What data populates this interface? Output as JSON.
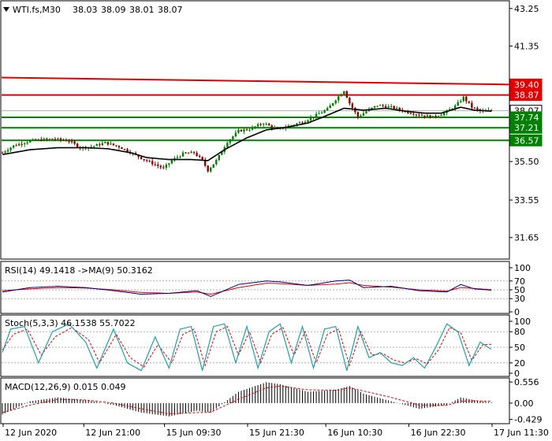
{
  "main": {
    "symbol": "WTI.fs,M30",
    "ohlc": [
      "38.03",
      "38.09",
      "38.01",
      "38.07"
    ],
    "y_ticks": [
      "43.25",
      "41.35",
      "39.40",
      "35.50",
      "33.55",
      "31.65"
    ],
    "price_labels": [
      {
        "text": "39.40",
        "bg": "#e00000",
        "fg": "#ffffff"
      },
      {
        "text": "38.87",
        "bg": "#e00000",
        "fg": "#ffffff"
      },
      {
        "text": "38.07",
        "bg": "#ffffff",
        "fg": "#000000"
      },
      {
        "text": "37.74",
        "bg": "#008000",
        "fg": "#ffffff"
      },
      {
        "text": "37.21",
        "bg": "#008000",
        "fg": "#ffffff"
      },
      {
        "text": "36.57",
        "bg": "#008000",
        "fg": "#ffffff"
      }
    ]
  },
  "rsi": {
    "label": "RSI(14) 49.1418  ->MA(9) 50.3162",
    "y_ticks": [
      "100",
      "70",
      "50",
      "30",
      "0"
    ]
  },
  "stoch": {
    "label": "Stoch(5,3,3) 46.1538 55.7022",
    "y_ticks": [
      "100",
      "80",
      "50",
      "20",
      "0"
    ]
  },
  "macd": {
    "label": "MACD(12,26,9) 0.015 0.049",
    "y_ticks": [
      "0.556",
      "0.00",
      "-0.429"
    ]
  },
  "x_ticks": [
    "12 Jun 2020",
    "12 Jun 21:00",
    "15 Jun 09:30",
    "15 Jun 21:30",
    "16 Jun 10:30",
    "16 Jun 22:30",
    "17 Jun 11:30"
  ],
  "colors": {
    "resistance": "#e00000",
    "support": "#008000",
    "candle_up": "#008000",
    "candle_down": "#8b0000",
    "ma": "#000000",
    "rsi": "#000080",
    "rsi_ma": "#e00000",
    "stoch_main": "#20a0a8",
    "stoch_signal": "#e00000",
    "macd_hist": "#000000",
    "macd_signal": "#e00000"
  },
  "chart_data": [
    {
      "type": "candlestick",
      "title": "WTI.fs,M30",
      "x": [
        "12 Jun 2020",
        "12 Jun 21:00",
        "15 Jun 09:30",
        "15 Jun 21:30",
        "16 Jun 10:30",
        "16 Jun 22:30",
        "17 Jun 11:30"
      ],
      "ylim": [
        30.6,
        43.6
      ],
      "price_path": [
        [
          0,
          35.95
        ],
        [
          4,
          36.3
        ],
        [
          10,
          36.55
        ],
        [
          18,
          36.65
        ],
        [
          24,
          36.55
        ],
        [
          28,
          36.2
        ],
        [
          32,
          36.25
        ],
        [
          37,
          36.45
        ],
        [
          42,
          36.25
        ],
        [
          47,
          35.9
        ],
        [
          51,
          35.6
        ],
        [
          55,
          35.35
        ],
        [
          58,
          35.15
        ],
        [
          61,
          35.55
        ],
        [
          65,
          35.9
        ],
        [
          69,
          35.95
        ],
        [
          72,
          35.55
        ],
        [
          74,
          35.05
        ],
        [
          77,
          35.55
        ],
        [
          81,
          36.5
        ],
        [
          85,
          37.05
        ],
        [
          89,
          37.15
        ],
        [
          94,
          37.45
        ],
        [
          99,
          37.1
        ],
        [
          103,
          37.3
        ],
        [
          108,
          37.5
        ],
        [
          113,
          37.85
        ],
        [
          117,
          38.15
        ],
        [
          120,
          38.65
        ],
        [
          123,
          39.1
        ],
        [
          125,
          38.45
        ],
        [
          128,
          37.75
        ],
        [
          131,
          38.05
        ],
        [
          135,
          38.35
        ],
        [
          140,
          38.25
        ],
        [
          146,
          38.0
        ],
        [
          151,
          37.85
        ],
        [
          155,
          37.75
        ],
        [
          159,
          37.95
        ],
        [
          163,
          38.3
        ],
        [
          166,
          38.75
        ],
        [
          169,
          38.25
        ],
        [
          172,
          38.05
        ],
        [
          176,
          38.07
        ]
      ],
      "ma_path": [
        [
          0,
          35.85
        ],
        [
          10,
          36.1
        ],
        [
          20,
          36.2
        ],
        [
          30,
          36.2
        ],
        [
          38,
          36.15
        ],
        [
          46,
          35.95
        ],
        [
          52,
          35.7
        ],
        [
          60,
          35.6
        ],
        [
          68,
          35.6
        ],
        [
          74,
          35.55
        ],
        [
          80,
          36.1
        ],
        [
          88,
          36.7
        ],
        [
          95,
          37.1
        ],
        [
          103,
          37.25
        ],
        [
          110,
          37.45
        ],
        [
          118,
          37.9
        ],
        [
          123,
          38.2
        ],
        [
          130,
          38.1
        ],
        [
          138,
          38.2
        ],
        [
          145,
          38.05
        ],
        [
          152,
          37.95
        ],
        [
          158,
          37.95
        ],
        [
          165,
          38.25
        ],
        [
          170,
          38.1
        ],
        [
          176,
          38.05
        ]
      ],
      "ohlc_last": [
        38.03,
        38.09,
        38.01,
        38.07
      ],
      "resistance_lines": [
        {
          "from": 39.75,
          "to": 39.4
        },
        {
          "from": 38.87,
          "to": 38.87
        }
      ],
      "support_lines": [
        37.74,
        37.21,
        36.57
      ]
    },
    {
      "type": "line",
      "title": "RSI(14) 49.1418  ->MA(9) 50.3162",
      "ylim": [
        0,
        100
      ],
      "levels": [
        70,
        50,
        30
      ],
      "series": [
        {
          "name": "RSI(14)",
          "values": [
            [
              0,
              45
            ],
            [
              10,
              55
            ],
            [
              20,
              58
            ],
            [
              30,
              55
            ],
            [
              40,
              48
            ],
            [
              50,
              40
            ],
            [
              60,
              42
            ],
            [
              70,
              48
            ],
            [
              75,
              35
            ],
            [
              85,
              62
            ],
            [
              95,
              70
            ],
            [
              100,
              68
            ],
            [
              110,
              60
            ],
            [
              120,
              70
            ],
            [
              125,
              72
            ],
            [
              130,
              55
            ],
            [
              140,
              58
            ],
            [
              150,
              48
            ],
            [
              160,
              45
            ],
            [
              165,
              62
            ],
            [
              170,
              52
            ],
            [
              176,
              49.14
            ]
          ]
        },
        {
          "name": "MA(9)",
          "values": [
            [
              0,
              48
            ],
            [
              10,
              52
            ],
            [
              20,
              55
            ],
            [
              30,
              54
            ],
            [
              40,
              50
            ],
            [
              50,
              44
            ],
            [
              60,
              42
            ],
            [
              70,
              45
            ],
            [
              75,
              40
            ],
            [
              85,
              55
            ],
            [
              95,
              65
            ],
            [
              100,
              64
            ],
            [
              110,
              60
            ],
            [
              120,
              63
            ],
            [
              125,
              66
            ],
            [
              130,
              60
            ],
            [
              140,
              56
            ],
            [
              150,
              50
            ],
            [
              160,
              47
            ],
            [
              165,
              55
            ],
            [
              170,
              53
            ],
            [
              176,
              50.32
            ]
          ]
        }
      ]
    },
    {
      "type": "line",
      "title": "Stoch(5,3,3) 46.1538 55.7022",
      "ylim": [
        0,
        100
      ],
      "levels": [
        80,
        50,
        20
      ],
      "series": [
        {
          "name": "Stoch main",
          "values": [
            [
              0,
              40
            ],
            [
              3,
              85
            ],
            [
              8,
              90
            ],
            [
              13,
              20
            ],
            [
              18,
              80
            ],
            [
              24,
              95
            ],
            [
              30,
              60
            ],
            [
              34,
              10
            ],
            [
              40,
              85
            ],
            [
              45,
              20
            ],
            [
              50,
              5
            ],
            [
              55,
              70
            ],
            [
              60,
              10
            ],
            [
              64,
              85
            ],
            [
              68,
              90
            ],
            [
              72,
              5
            ],
            [
              76,
              90
            ],
            [
              80,
              95
            ],
            [
              84,
              20
            ],
            [
              88,
              90
            ],
            [
              92,
              10
            ],
            [
              96,
              80
            ],
            [
              100,
              95
            ],
            [
              104,
              20
            ],
            [
              108,
              90
            ],
            [
              112,
              10
            ],
            [
              116,
              85
            ],
            [
              120,
              90
            ],
            [
              124,
              5
            ],
            [
              128,
              90
            ],
            [
              132,
              30
            ],
            [
              136,
              40
            ],
            [
              140,
              20
            ],
            [
              144,
              15
            ],
            [
              148,
              30
            ],
            [
              152,
              10
            ],
            [
              156,
              50
            ],
            [
              160,
              95
            ],
            [
              164,
              80
            ],
            [
              168,
              15
            ],
            [
              172,
              60
            ],
            [
              176,
              46.15
            ]
          ]
        },
        {
          "name": "Signal",
          "values": [
            [
              0,
              45
            ],
            [
              4,
              75
            ],
            [
              9,
              85
            ],
            [
              14,
              35
            ],
            [
              19,
              70
            ],
            [
              25,
              88
            ],
            [
              31,
              65
            ],
            [
              35,
              20
            ],
            [
              41,
              75
            ],
            [
              46,
              30
            ],
            [
              51,
              12
            ],
            [
              56,
              55
            ],
            [
              61,
              20
            ],
            [
              65,
              75
            ],
            [
              69,
              85
            ],
            [
              73,
              15
            ],
            [
              77,
              80
            ],
            [
              81,
              90
            ],
            [
              85,
              35
            ],
            [
              89,
              80
            ],
            [
              93,
              20
            ],
            [
              97,
              75
            ],
            [
              101,
              88
            ],
            [
              105,
              35
            ],
            [
              109,
              80
            ],
            [
              113,
              20
            ],
            [
              117,
              75
            ],
            [
              121,
              85
            ],
            [
              125,
              15
            ],
            [
              129,
              80
            ],
            [
              133,
              35
            ],
            [
              137,
              38
            ],
            [
              141,
              25
            ],
            [
              145,
              20
            ],
            [
              149,
              28
            ],
            [
              153,
              18
            ],
            [
              157,
              45
            ],
            [
              161,
              88
            ],
            [
              165,
              78
            ],
            [
              169,
              25
            ],
            [
              173,
              55
            ],
            [
              176,
              55.7
            ]
          ]
        }
      ]
    },
    {
      "type": "bar",
      "title": "MACD(12,26,9) 0.015 0.049",
      "ylim": [
        -0.5,
        0.62
      ],
      "series": [
        {
          "name": "MACD",
          "values": [
            [
              0,
              -0.3
            ],
            [
              10,
              0.05
            ],
            [
              20,
              0.15
            ],
            [
              30,
              0.08
            ],
            [
              40,
              -0.05
            ],
            [
              50,
              -0.25
            ],
            [
              60,
              -0.35
            ],
            [
              70,
              -0.2
            ],
            [
              75,
              -0.25
            ],
            [
              85,
              0.3
            ],
            [
              95,
              0.55
            ],
            [
              100,
              0.5
            ],
            [
              110,
              0.3
            ],
            [
              120,
              0.35
            ],
            [
              125,
              0.45
            ],
            [
              130,
              0.25
            ],
            [
              140,
              0.05
            ],
            [
              150,
              -0.15
            ],
            [
              160,
              -0.05
            ],
            [
              165,
              0.15
            ],
            [
              170,
              0.08
            ],
            [
              176,
              0.015
            ]
          ]
        },
        {
          "name": "Signal",
          "values": [
            [
              0,
              -0.25
            ],
            [
              10,
              -0.05
            ],
            [
              20,
              0.1
            ],
            [
              30,
              0.08
            ],
            [
              40,
              0.0
            ],
            [
              50,
              -0.15
            ],
            [
              60,
              -0.28
            ],
            [
              70,
              -0.25
            ],
            [
              75,
              -0.24
            ],
            [
              85,
              0.1
            ],
            [
              95,
              0.4
            ],
            [
              100,
              0.45
            ],
            [
              110,
              0.35
            ],
            [
              120,
              0.34
            ],
            [
              125,
              0.4
            ],
            [
              130,
              0.32
            ],
            [
              140,
              0.15
            ],
            [
              150,
              -0.05
            ],
            [
              160,
              -0.06
            ],
            [
              165,
              0.05
            ],
            [
              170,
              0.06
            ],
            [
              176,
              0.049
            ]
          ]
        }
      ]
    }
  ]
}
